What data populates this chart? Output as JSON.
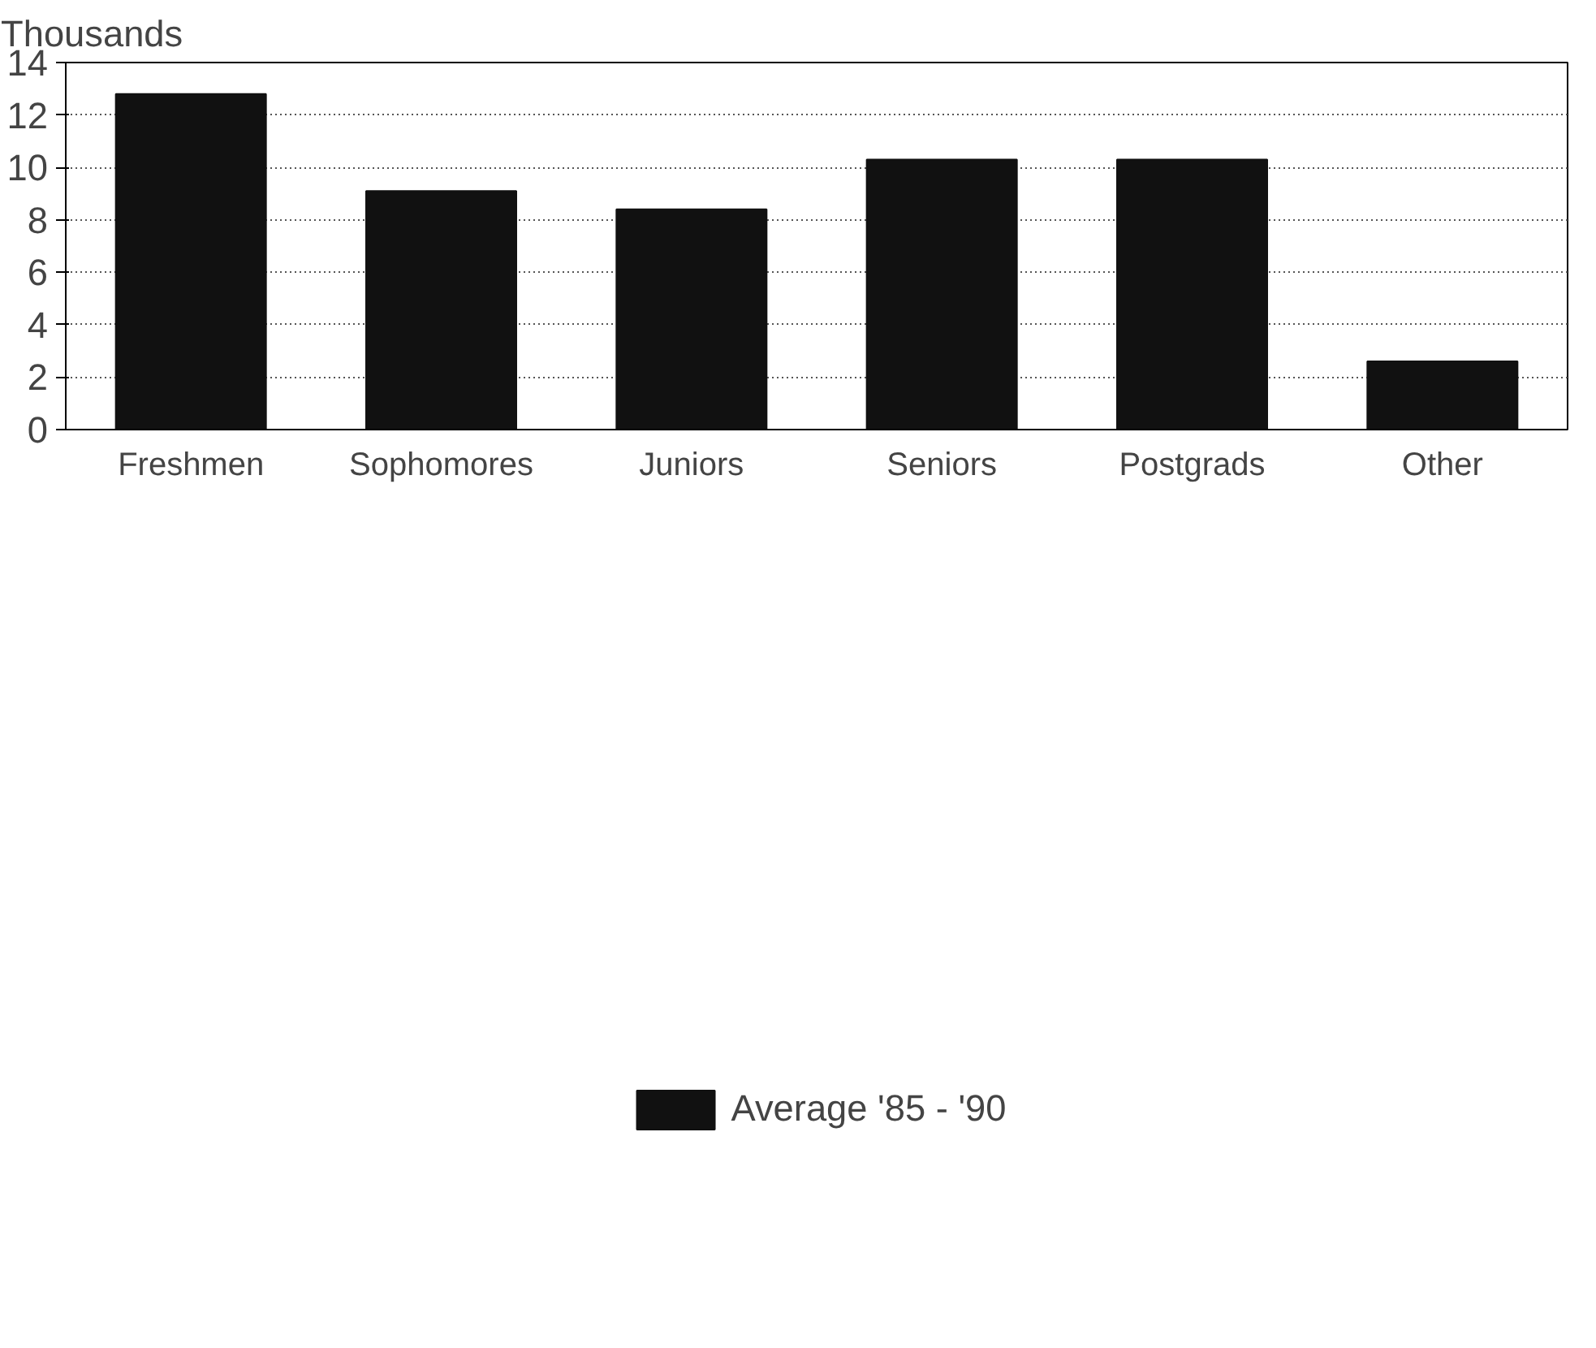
{
  "chart_data": {
    "type": "bar",
    "ylabel": "Thousands",
    "categories": [
      "Freshmen",
      "Sophomores",
      "Juniors",
      "Seniors",
      "Postgrads",
      "Other"
    ],
    "series": [
      {
        "name": "Average '85 - '90",
        "color": "#111111",
        "values": [
          12.8,
          9.1,
          8.4,
          10.3,
          10.3,
          2.6
        ]
      }
    ],
    "ylim": [
      0,
      14
    ],
    "yticks": [
      0,
      2,
      4,
      6,
      8,
      10,
      12,
      14
    ],
    "grid": "y",
    "legend": "bottom"
  }
}
